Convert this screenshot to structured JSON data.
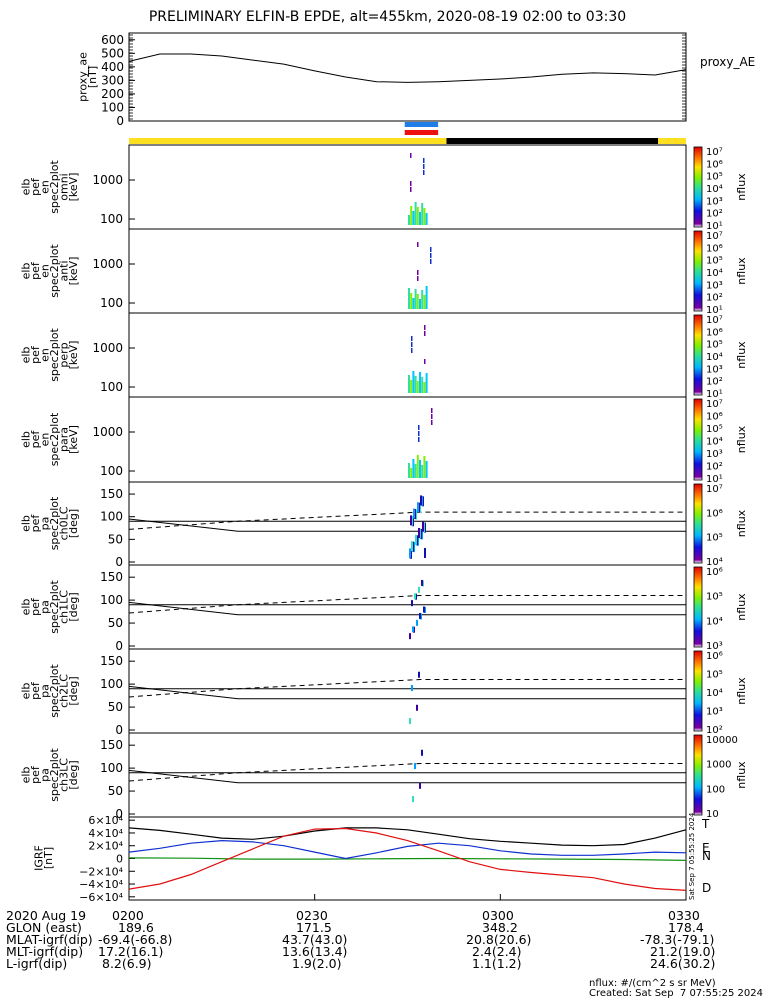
{
  "title": "PRELIMINARY ELFIN-B EPDE, alt=455km, 2020-08-19 02:00 to 03:30",
  "chart_data": [
    {
      "type": "line",
      "id": "proxy_ae",
      "ylabel_lines": [
        "proxy_ae",
        "[nT]"
      ],
      "series_label": "proxy_AE",
      "yticks": [
        "600",
        "500",
        "400",
        "300",
        "200",
        "100",
        "0"
      ],
      "ylim": [
        0,
        650
      ],
      "x": [
        0,
        5,
        10,
        15,
        20,
        25,
        30,
        35,
        40,
        45,
        50,
        55,
        60,
        65,
        70,
        75,
        80,
        85,
        90
      ],
      "y": [
        440,
        495,
        495,
        480,
        450,
        420,
        370,
        325,
        290,
        285,
        290,
        300,
        310,
        325,
        345,
        355,
        350,
        340,
        380
      ]
    },
    {
      "type": "bar",
      "id": "orbit_bar",
      "segments": [
        {
          "from": 0,
          "to": 57,
          "color": "#ffe020"
        },
        {
          "from": 57,
          "to": 95,
          "color": "#000000"
        },
        {
          "from": 95,
          "to": 100,
          "color": "#ffe020"
        }
      ],
      "markers": [
        {
          "from": 49.5,
          "to": 55.5,
          "color": "#1f7ee8",
          "row": 0
        },
        {
          "from": 49.5,
          "to": 55.5,
          "color": "#ee1010",
          "row": 1
        }
      ]
    },
    {
      "type": "heatmap",
      "id": "en_omni",
      "ylabel_lines": [
        "elb",
        "pef",
        "en",
        "spec2plot",
        "omni",
        "[keV]"
      ],
      "yticks": [
        "1000",
        "100"
      ],
      "zlabel": "nflux",
      "zticks": [
        "10⁷",
        "10⁶",
        "10⁵",
        "10⁴",
        "10³",
        "10²",
        "10¹"
      ]
    },
    {
      "type": "heatmap",
      "id": "en_anti",
      "ylabel_lines": [
        "elb",
        "pef",
        "en",
        "spec2plot",
        "anti",
        "[keV]"
      ],
      "yticks": [
        "1000",
        "100"
      ],
      "zlabel": "nflux",
      "zticks": [
        "10⁷",
        "10⁶",
        "10⁵",
        "10⁴",
        "10³",
        "10²",
        "10¹"
      ]
    },
    {
      "type": "heatmap",
      "id": "en_perp",
      "ylabel_lines": [
        "elb",
        "pef",
        "en",
        "spec2plot",
        "perp",
        "[keV]"
      ],
      "yticks": [
        "1000",
        "100"
      ],
      "zlabel": "nflux",
      "zticks": [
        "10⁷",
        "10⁶",
        "10⁵",
        "10⁴",
        "10³",
        "10²",
        "10¹"
      ]
    },
    {
      "type": "heatmap",
      "id": "en_para",
      "ylabel_lines": [
        "elb",
        "pef",
        "en",
        "spec2plot",
        "para",
        "[keV]"
      ],
      "yticks": [
        "1000",
        "100"
      ],
      "zlabel": "nflux",
      "zticks": [
        "10⁷",
        "10⁶",
        "10⁵",
        "10⁴",
        "10³",
        "10²",
        "10¹"
      ]
    },
    {
      "type": "heatmap",
      "id": "pa_ch0",
      "ylabel_lines": [
        "elb",
        "pef",
        "pa",
        "spec2plot",
        "ch0LC",
        "[deg]"
      ],
      "yticks": [
        "150",
        "100",
        "50",
        "0"
      ],
      "zlabel": "nflux",
      "zticks": [
        "10⁷",
        "10⁶",
        "10⁵",
        "10⁴"
      ]
    },
    {
      "type": "heatmap",
      "id": "pa_ch1",
      "ylabel_lines": [
        "elb",
        "pef",
        "pa",
        "spec2plot",
        "ch1LC",
        "[deg]"
      ],
      "yticks": [
        "150",
        "100",
        "50",
        "0"
      ],
      "zlabel": "nflux",
      "zticks": [
        "10⁶",
        "10⁵",
        "10⁴",
        "10³"
      ]
    },
    {
      "type": "heatmap",
      "id": "pa_ch2",
      "ylabel_lines": [
        "elb",
        "pef",
        "pa",
        "spec2plot",
        "ch2LC",
        "[deg]"
      ],
      "yticks": [
        "150",
        "100",
        "50",
        "0"
      ],
      "zlabel": "nflux",
      "zticks": [
        "10⁶",
        "10⁵",
        "10⁴",
        "10³",
        "10²"
      ]
    },
    {
      "type": "heatmap",
      "id": "pa_ch3",
      "ylabel_lines": [
        "elb",
        "pef",
        "pa",
        "spec2plot",
        "ch3LC",
        "[deg]"
      ],
      "yticks": [
        "150",
        "100",
        "50",
        "0"
      ],
      "zlabel": "nflux",
      "zticks": [
        "10000",
        "1000",
        "100",
        "10"
      ]
    },
    {
      "type": "line",
      "id": "igrf",
      "ylabel_lines": [
        "IGRF",
        "[nT]"
      ],
      "yticks": [
        "6×10⁴",
        "4×10⁴",
        "2×10⁴",
        "0",
        "−2×10⁴",
        "−4×10⁴",
        "−6×10⁴"
      ],
      "ylim": [
        -65000,
        65000
      ],
      "legend": [
        "T",
        "E",
        "N",
        "D"
      ],
      "side_text": "Sat Sep  7 05:55:25 2024",
      "series": [
        {
          "name": "T",
          "color": "#000000",
          "x": [
            0,
            5,
            10,
            15,
            20,
            25,
            30,
            35,
            40,
            45,
            50,
            55,
            60,
            65,
            70,
            75,
            80,
            85,
            90
          ],
          "y": [
            48000,
            44000,
            38000,
            32000,
            30000,
            35000,
            43000,
            48000,
            48000,
            45000,
            38000,
            31000,
            27000,
            24000,
            21000,
            20000,
            22000,
            32000,
            45000
          ]
        },
        {
          "name": "E",
          "color": "#109010",
          "x": [
            0,
            10,
            20,
            30,
            40,
            50,
            60,
            70,
            80,
            90
          ],
          "y": [
            1000,
            500,
            -1000,
            -1000,
            -500,
            0,
            -500,
            -1000,
            -1500,
            -3000
          ]
        },
        {
          "name": "N",
          "color": "#1030d0",
          "x": [
            0,
            5,
            10,
            15,
            20,
            25,
            30,
            35,
            40,
            45,
            50,
            55,
            60,
            65,
            70,
            75,
            80,
            85,
            90
          ],
          "y": [
            10000,
            16000,
            24000,
            28000,
            26000,
            20000,
            10000,
            0,
            9000,
            19000,
            24000,
            20000,
            12000,
            7000,
            5000,
            5000,
            7000,
            10000,
            9000
          ]
        },
        {
          "name": "D",
          "color": "#e01010",
          "x": [
            0,
            5,
            10,
            15,
            20,
            25,
            30,
            35,
            40,
            45,
            50,
            55,
            60,
            65,
            70,
            75,
            80,
            85,
            90
          ],
          "y": [
            -48000,
            -40000,
            -25000,
            -5000,
            15000,
            35000,
            46000,
            47000,
            40000,
            28000,
            12000,
            -5000,
            -17000,
            -22000,
            -26000,
            -30000,
            -40000,
            -47000,
            -50000
          ]
        }
      ]
    }
  ],
  "footer": {
    "row_labels": [
      "2020 Aug 19",
      "GLON (east)",
      "MLAT-igrf(dip)",
      "MLT-igrf(dip)",
      "L-igrf(dip)"
    ],
    "columns": [
      {
        "values": [
          "0200",
          "189.6",
          "-69.4(-66.8)",
          "17.2(16.1)",
          "8.2(6.9)"
        ]
      },
      {
        "values": [
          "0230",
          "171.5",
          "43.7(43.0)",
          "13.6(13.4)",
          "1.9(2.0)"
        ]
      },
      {
        "values": [
          "0300",
          "348.2",
          "20.8(20.6)",
          "2.4(2.4)",
          "1.1(1.2)"
        ]
      },
      {
        "values": [
          "0330",
          "178.4",
          "-78.3(-79.1)",
          "21.2(19.0)",
          "24.6(30.2)"
        ]
      }
    ],
    "units_note": "nflux: #/(cm^2 s sr MeV)",
    "created": "Created: Sat Sep  7 07:55:25 2024"
  }
}
